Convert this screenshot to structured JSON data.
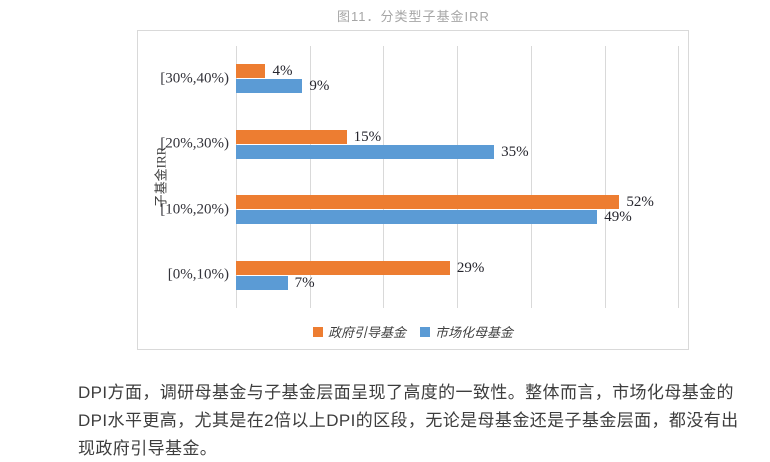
{
  "figure": {
    "title": "图11．分类型子基金IRR"
  },
  "chart_data": {
    "type": "bar",
    "orientation": "horizontal",
    "title": "图11．分类型子基金IRR",
    "ylabel": "子基金IRR",
    "xlabel": "",
    "categories": [
      "[30%,40%)",
      "[20%,30%)",
      "[10%,20%)",
      "[0%,10%)"
    ],
    "series": [
      {
        "key": "government-guided-fund",
        "name": "政府引导基金",
        "color": "#ED7D31",
        "values": [
          4,
          15,
          52,
          29
        ]
      },
      {
        "key": "market-oriented-fof",
        "name": "市场化母基金",
        "color": "#5B9BD5",
        "values": [
          9,
          35,
          49,
          7
        ]
      }
    ],
    "value_axis": {
      "min": 0,
      "max": 61.3,
      "ticks": [
        10,
        20,
        30,
        40,
        50,
        60
      ],
      "unit": "%"
    },
    "data_labels": true,
    "data_label_suffix": "%",
    "legend_position": "bottom",
    "grid": true
  },
  "paragraph": {
    "lines": [
      "DPI方面，调研母基金与子基金层面呈现了高度的一致性。整体而言，市场化母基金的",
      "DPI水平更高，尤其是在2倍以上DPI的区段，无论是母基金还是子基金层面，都没有出",
      "现政府引导基金。"
    ]
  }
}
